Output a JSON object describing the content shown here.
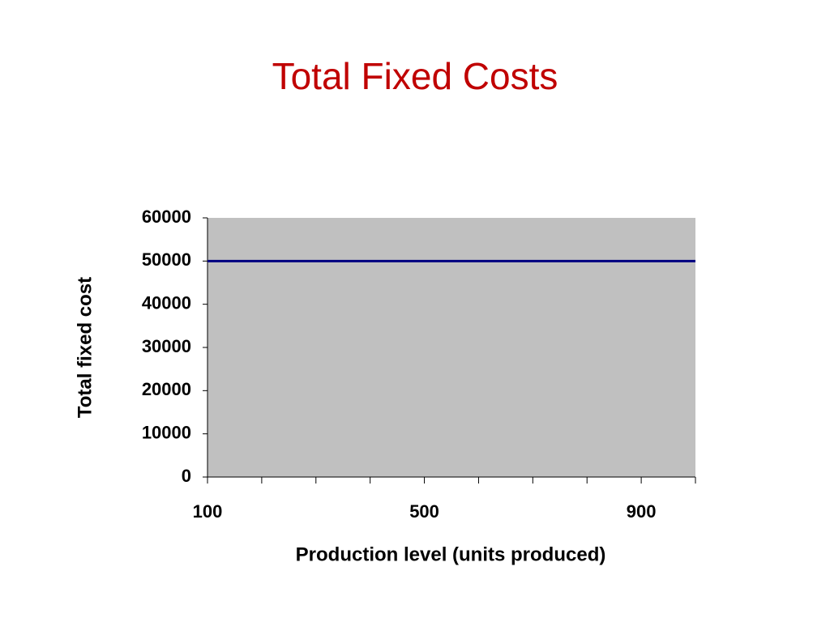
{
  "chart_data": {
    "type": "line",
    "title": "Total Fixed Costs",
    "xlabel": "Production level (units produced)",
    "ylabel": "Total fixed cost",
    "x": [
      100,
      200,
      300,
      400,
      500,
      600,
      700,
      800,
      900,
      1000
    ],
    "series": [
      {
        "name": "Total fixed cost",
        "color": "#000080",
        "values": [
          50000,
          50000,
          50000,
          50000,
          50000,
          50000,
          50000,
          50000,
          50000,
          50000
        ]
      }
    ],
    "xlim": [
      100,
      1000
    ],
    "xticks": [
      100,
      500,
      900
    ],
    "xminor_ticks": [
      200,
      300,
      400,
      600,
      700,
      800,
      1000
    ],
    "ylim": [
      0,
      60000
    ],
    "yticks": [
      0,
      10000,
      20000,
      30000,
      40000,
      50000,
      60000
    ],
    "plot_background": "#c0c0c0",
    "title_color": "#c00000",
    "grid": false
  }
}
